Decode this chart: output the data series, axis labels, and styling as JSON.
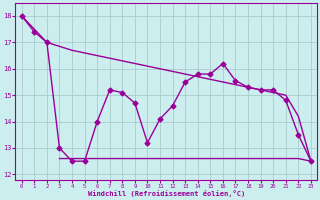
{
  "line1_x": [
    0,
    1,
    2,
    3,
    4,
    5,
    6,
    7,
    8,
    9,
    10,
    11,
    12,
    13,
    14,
    15,
    16,
    17,
    18,
    19,
    20,
    21,
    22,
    23
  ],
  "line1_y": [
    18.0,
    17.4,
    17.0,
    13.0,
    12.5,
    12.5,
    14.0,
    15.2,
    15.1,
    14.7,
    13.2,
    14.1,
    14.6,
    15.5,
    15.8,
    15.8,
    16.2,
    15.55,
    15.3,
    15.2,
    15.2,
    14.8,
    13.5,
    12.5
  ],
  "line2_x": [
    0,
    1,
    2,
    3,
    4,
    5,
    6,
    7,
    8,
    9,
    10,
    11,
    12,
    13,
    14,
    15,
    16,
    17,
    18,
    19,
    20,
    21,
    22,
    23
  ],
  "line2_y": [
    18.0,
    17.5,
    17.0,
    16.85,
    16.7,
    16.6,
    16.5,
    16.4,
    16.3,
    16.2,
    16.1,
    16.0,
    15.9,
    15.8,
    15.7,
    15.6,
    15.5,
    15.4,
    15.3,
    15.2,
    15.1,
    15.0,
    14.2,
    12.5
  ],
  "line3_x": [
    3,
    4,
    5,
    6,
    7,
    8,
    9,
    10,
    11,
    12,
    13,
    14,
    15,
    16,
    17,
    18,
    19,
    20,
    21,
    22,
    23
  ],
  "line3_y": [
    12.6,
    12.6,
    12.6,
    12.6,
    12.6,
    12.6,
    12.6,
    12.6,
    12.6,
    12.6,
    12.6,
    12.6,
    12.6,
    12.6,
    12.6,
    12.6,
    12.6,
    12.6,
    12.6,
    12.6,
    12.5
  ],
  "color": "#990099",
  "bg_color": "#cceeee",
  "grid_color": "#aacccc",
  "xlabel": "Windchill (Refroidissement éolien,°C)",
  "xlim": [
    -0.5,
    23.5
  ],
  "ylim": [
    11.8,
    18.5
  ],
  "yticks": [
    12,
    13,
    14,
    15,
    16,
    17,
    18
  ],
  "xticks": [
    0,
    1,
    2,
    3,
    4,
    5,
    6,
    7,
    8,
    9,
    10,
    11,
    12,
    13,
    14,
    15,
    16,
    17,
    18,
    19,
    20,
    21,
    22,
    23
  ],
  "marker": "D",
  "marker_size": 2.5,
  "linewidth": 1.0
}
